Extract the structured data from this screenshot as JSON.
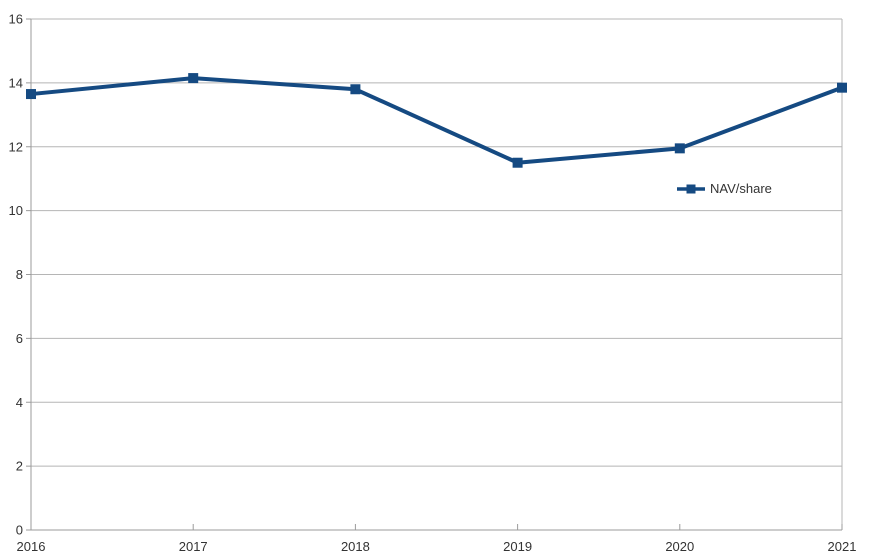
{
  "chart_data": {
    "type": "line",
    "title": "",
    "categories": [
      "2016",
      "2017",
      "2018",
      "2019",
      "2020",
      "2021"
    ],
    "series": [
      {
        "name": "NAV/share",
        "values": [
          13.65,
          14.15,
          13.8,
          11.5,
          11.95,
          13.85
        ]
      }
    ],
    "xlabel": "",
    "ylabel": "",
    "ylim": [
      0,
      16
    ],
    "yticks": [
      0,
      2,
      4,
      6,
      8,
      10,
      12,
      14,
      16
    ],
    "grid": "horizontal",
    "legend": {
      "position": "middle-right",
      "entries": [
        "NAV/share"
      ]
    },
    "marker": "square",
    "colors": {
      "series": "#154a82",
      "gridline": "#b5b5b5",
      "axis": "#9b9b9b",
      "label": "#333333",
      "background": "#ffffff"
    }
  }
}
